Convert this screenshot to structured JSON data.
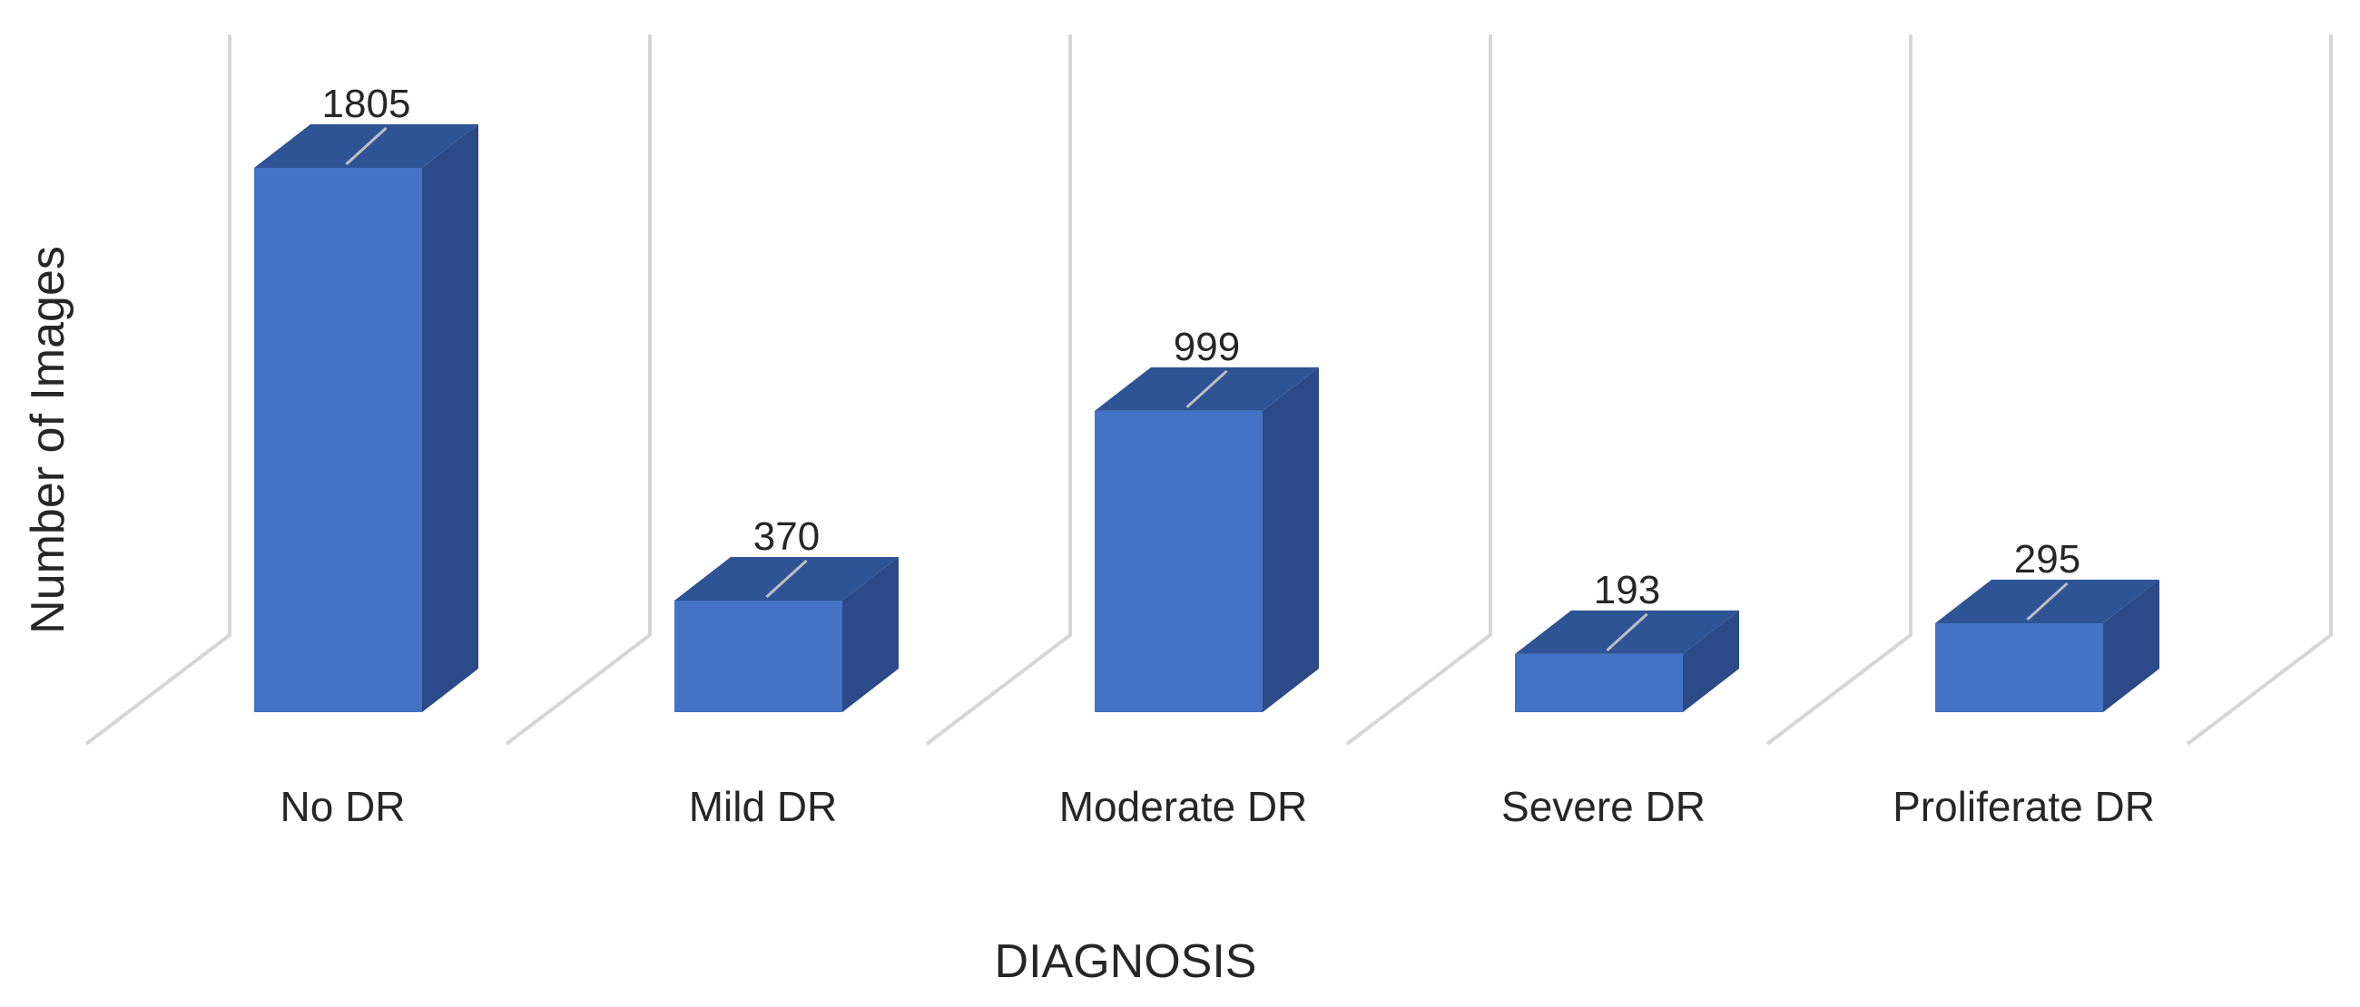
{
  "chart_data": {
    "type": "bar",
    "style": "3d-column",
    "title": "",
    "categories": [
      "No DR",
      "Mild DR",
      "Moderate DR",
      "Severe DR",
      "Proliferate DR"
    ],
    "values": [
      1805,
      370,
      999,
      193,
      295
    ],
    "data_labels": [
      "1805",
      "370",
      "999",
      "193",
      "295"
    ],
    "xlabel": "DIAGNOSIS",
    "ylabel": "Number of Images",
    "ylim": [
      0,
      2000
    ],
    "grid": true,
    "legend": "none",
    "colors": {
      "bar_front": "#4472c4",
      "bar_top": "#2f5496",
      "bar_side": "#2b4a87",
      "gridline": "#d6d6d6",
      "text": "#262626"
    }
  }
}
